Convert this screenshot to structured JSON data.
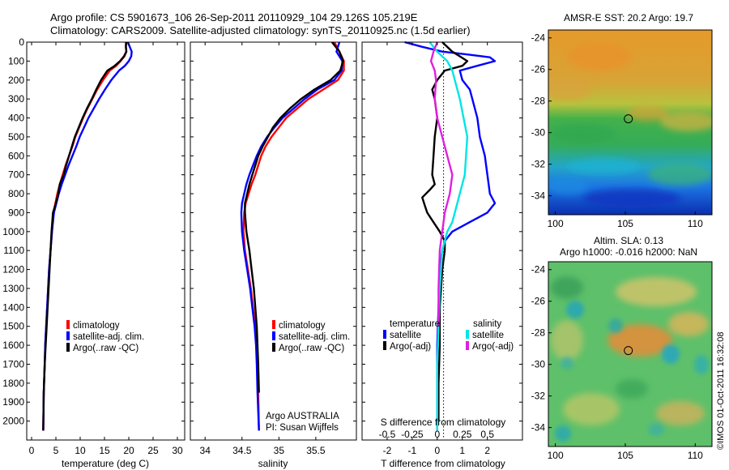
{
  "header": {
    "line1": "Argo profile: CS 5901673_106 26-Sep-2011 20110929_104 29.126S 105.219E",
    "line2": "Climatology: CARS2009. Satellite-adjusted climatology: synTS_20110925.nc (1.5d earlier)"
  },
  "chart_data": [
    {
      "type": "line",
      "id": "temperature",
      "xlabel": "temperature (deg C)",
      "ylabel": "",
      "xlim": [
        -1,
        31.5
      ],
      "ylim": [
        2100,
        0
      ],
      "xticks": [
        0,
        5,
        10,
        15,
        20,
        25,
        30
      ],
      "yticks": [
        0,
        100,
        200,
        300,
        400,
        500,
        600,
        700,
        800,
        900,
        1000,
        1100,
        1200,
        1300,
        1400,
        1500,
        1600,
        1700,
        1800,
        1900,
        2000
      ],
      "legend": [
        "climatology",
        "satellite-adj. clim.",
        "Argo(..raw -QC)"
      ],
      "colors": {
        "climatology": "#ff0000",
        "satellite": "#0000ff",
        "argo": "#000000"
      },
      "series": [
        {
          "name": "climatology",
          "x": [
            19.4,
            19.4,
            19.5,
            19.1,
            18.3,
            17.4,
            16.1,
            14.7,
            13.5,
            12.5,
            11.5,
            10.6,
            9.8,
            9.0,
            8.4,
            7.7,
            7.0,
            6.4,
            5.8,
            5.3,
            4.9,
            4.5,
            4.2,
            3.9,
            3.6,
            3.4,
            3.2,
            3.0,
            2.8,
            2.7,
            2.5,
            2.4
          ],
          "y": [
            0,
            25,
            50,
            75,
            100,
            125,
            150,
            200,
            250,
            300,
            350,
            400,
            450,
            500,
            550,
            600,
            650,
            700,
            750,
            800,
            850,
            900,
            1000,
            1100,
            1200,
            1300,
            1400,
            1500,
            1600,
            1700,
            1850,
            2050
          ]
        },
        {
          "name": "satellite-adj. clim.",
          "x": [
            19.8,
            20.2,
            20.6,
            20.5,
            20.0,
            19.2,
            18.0,
            16.4,
            15.1,
            13.9,
            12.8,
            11.7,
            10.8,
            9.9,
            9.2,
            8.4,
            7.6,
            6.9,
            6.2,
            5.6,
            5.1,
            4.6,
            4.2,
            3.9,
            3.6,
            3.4,
            3.2,
            3.0,
            2.8,
            2.7,
            2.5,
            2.4
          ],
          "y": [
            0,
            25,
            50,
            75,
            100,
            125,
            150,
            200,
            250,
            300,
            350,
            400,
            450,
            500,
            550,
            600,
            650,
            700,
            750,
            800,
            850,
            900,
            1000,
            1100,
            1200,
            1300,
            1400,
            1500,
            1600,
            1700,
            1850,
            2050
          ]
        },
        {
          "name": "Argo(..raw -QC)",
          "x": [
            19.5,
            19.4,
            19.5,
            19.0,
            18.2,
            17.1,
            15.6,
            14.3,
            13.3,
            12.4,
            11.4,
            10.5,
            9.7,
            8.9,
            8.3,
            7.7,
            7.1,
            6.6,
            5.8,
            5.5,
            5.0,
            4.4,
            4.1,
            3.9,
            3.7,
            3.5,
            3.3,
            3.1,
            2.9,
            2.7,
            2.5,
            2.4
          ],
          "y": [
            0,
            25,
            50,
            75,
            100,
            125,
            150,
            200,
            250,
            300,
            350,
            400,
            450,
            500,
            550,
            600,
            650,
            700,
            750,
            800,
            850,
            900,
            1000,
            1100,
            1200,
            1300,
            1400,
            1500,
            1600,
            1700,
            1850,
            2050
          ]
        }
      ]
    },
    {
      "type": "line",
      "id": "salinity",
      "xlabel": "salinity",
      "ylabel": "",
      "xlim": [
        33.8,
        36.05
      ],
      "ylim": [
        2100,
        0
      ],
      "xticks": [
        34,
        34.5,
        35,
        35.5
      ],
      "yticks": [],
      "legend": [
        "climatology",
        "satellite-adj. clim.",
        "Argo(..raw -QC)"
      ],
      "annotations": [
        "Argo AUSTRALIA",
        "PI: Susan Wijffels"
      ],
      "colors": {
        "climatology": "#ff0000",
        "satellite": "#0000ff",
        "argo": "#000000"
      },
      "series": [
        {
          "name": "climatology",
          "x": [
            35.75,
            35.82,
            35.88,
            35.88,
            35.8,
            35.6,
            35.4,
            35.25,
            35.1,
            35.0,
            34.9,
            34.82,
            34.76,
            34.72,
            34.68,
            34.63,
            34.59,
            34.55,
            34.53,
            34.52,
            34.54,
            34.58,
            34.62,
            34.65,
            34.68,
            34.7,
            34.71,
            34.72,
            34.73
          ],
          "y": [
            0,
            50,
            100,
            150,
            200,
            250,
            300,
            350,
            400,
            450,
            500,
            550,
            600,
            650,
            700,
            750,
            800,
            850,
            900,
            1000,
            1100,
            1200,
            1300,
            1400,
            1500,
            1600,
            1700,
            1850,
            2050
          ]
        },
        {
          "name": "satellite-adj. clim.",
          "x": [
            35.82,
            35.78,
            35.86,
            35.85,
            35.75,
            35.52,
            35.35,
            35.2,
            35.05,
            34.94,
            34.84,
            34.76,
            34.7,
            34.65,
            34.6,
            34.56,
            34.53,
            34.5,
            34.49,
            34.5,
            34.53,
            34.57,
            34.61,
            34.64,
            34.67,
            34.69,
            34.7,
            34.71,
            34.73
          ],
          "y": [
            0,
            50,
            100,
            150,
            200,
            250,
            300,
            350,
            400,
            450,
            500,
            550,
            600,
            650,
            700,
            750,
            800,
            850,
            900,
            1000,
            1100,
            1200,
            1300,
            1400,
            1500,
            1600,
            1700,
            1850,
            2050
          ]
        },
        {
          "name": "Argo(..raw -QC)",
          "x": [
            35.72,
            35.82,
            35.87,
            35.83,
            35.7,
            35.48,
            35.3,
            35.15,
            35.02,
            34.92,
            34.85,
            34.78,
            34.72,
            34.68,
            34.64,
            34.6,
            34.57,
            34.54,
            34.54,
            34.56,
            34.6,
            34.63,
            34.66,
            34.68,
            34.7,
            34.71,
            34.72,
            34.73
          ],
          "y": [
            0,
            50,
            100,
            150,
            200,
            250,
            300,
            350,
            400,
            450,
            500,
            550,
            600,
            650,
            700,
            750,
            800,
            850,
            900,
            1000,
            1100,
            1200,
            1300,
            1400,
            1500,
            1600,
            1700,
            1850
          ]
        }
      ]
    },
    {
      "type": "line",
      "id": "differences",
      "xlabel": "T difference from climatology",
      "xlabel_top": "S difference from climatology",
      "xlim": [
        -3,
        3.4
      ],
      "ylim": [
        2100,
        0
      ],
      "xticks": [
        -2,
        -1,
        0,
        1,
        2
      ],
      "xticks_s": [
        "-0.5",
        "-0.25",
        "0",
        "0.25",
        "0.5"
      ],
      "yticks": [],
      "legend_titles": [
        "temperature",
        "salinity"
      ],
      "legend": [
        "satellite",
        "Argo(-adj)",
        "satellite",
        "Argo(-adj)"
      ],
      "colors": {
        "t_satellite": "#0000ff",
        "t_argo": "#000000",
        "s_satellite": "#00e5e5",
        "s_argo": "#e020e0"
      },
      "series": [
        {
          "name": "T satellite",
          "x": [
            -1.3,
            -0.6,
            0.2,
            1.2,
            2.1,
            2.3,
            1.6,
            0.9,
            1.0,
            1.3,
            1.4,
            1.6,
            1.7,
            1.9,
            2.0,
            2.1,
            2.3,
            2.0,
            1.3,
            0.6,
            0.3,
            0.2,
            0.1,
            0.05,
            0.0,
            0.0,
            0.0
          ],
          "y": [
            0,
            25,
            50,
            65,
            80,
            100,
            125,
            150,
            200,
            250,
            300,
            400,
            500,
            600,
            700,
            800,
            850,
            900,
            950,
            1000,
            1050,
            1100,
            1200,
            1400,
            1600,
            1800,
            2050
          ]
        },
        {
          "name": "T argo",
          "x": [
            0.2,
            0.6,
            0.9,
            1.2,
            1.0,
            0.3,
            0.0,
            -0.2,
            -0.1,
            0.0,
            -0.1,
            -0.15,
            -0.2,
            -0.1,
            -0.3,
            -0.6,
            -0.5,
            -0.4,
            -0.2,
            0.1,
            0.3,
            0.3,
            0.2,
            0.1,
            0.1,
            0.05,
            0.05,
            0.05
          ],
          "y": [
            0,
            50,
            75,
            100,
            125,
            150,
            200,
            250,
            300,
            400,
            500,
            600,
            700,
            750,
            780,
            820,
            860,
            900,
            940,
            1000,
            1050,
            1100,
            1200,
            1400,
            1600,
            1800,
            1900,
            2000
          ]
        },
        {
          "name": "S satellite",
          "x": [
            -0.3,
            0.0,
            0.4,
            0.6,
            0.7,
            0.9,
            1.2,
            1.1,
            0.8,
            0.6,
            0.4,
            0.2,
            0.1,
            0.05,
            0.0,
            0.0,
            0.0
          ],
          "y": [
            0,
            50,
            100,
            150,
            200,
            300,
            500,
            700,
            850,
            950,
            1000,
            1100,
            1300,
            1500,
            1700,
            1900,
            2050
          ]
        },
        {
          "name": "S argo",
          "x": [
            0.0,
            -0.15,
            -0.25,
            -0.1,
            -0.05,
            -0.1,
            0.0,
            0.2,
            0.4,
            0.6,
            0.5,
            0.3,
            0.2,
            0.1,
            0.05,
            0.05
          ],
          "y": [
            0,
            50,
            100,
            150,
            200,
            300,
            400,
            500,
            600,
            700,
            800,
            900,
            1000,
            1100,
            1300,
            1500
          ]
        }
      ]
    },
    {
      "type": "heatmap",
      "id": "amse-sst",
      "title": "AMSR-E SST: 20.2 Argo: 19.7",
      "xlim": [
        99.5,
        111.2
      ],
      "ylim": [
        -35.2,
        -23.5
      ],
      "xticks": [
        100,
        105,
        110
      ],
      "yticks": [
        -24,
        -26,
        -28,
        -30,
        -32,
        -34
      ],
      "marker": {
        "lon": 105.219,
        "lat": -29.126
      }
    },
    {
      "type": "heatmap",
      "id": "altim-sla",
      "title": "Altim. SLA: 0.13",
      "subtitle": "Argo h1000: -0.016 h2000: NaN",
      "xlim": [
        99.5,
        111.2
      ],
      "ylim": [
        -35.2,
        -23.5
      ],
      "xticks": [
        100,
        105,
        110
      ],
      "yticks": [
        -24,
        -26,
        -28,
        -30,
        -32,
        -34
      ],
      "marker": {
        "lon": 105.219,
        "lat": -29.126
      }
    }
  ],
  "credit": "©IMOS 01-Oct-2011 16:32:08"
}
